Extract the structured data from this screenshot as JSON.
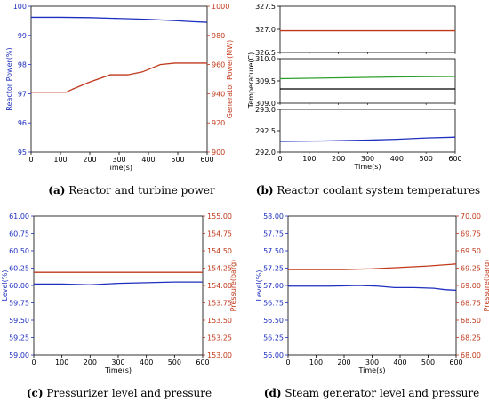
{
  "chart_data": [
    {
      "id": "a",
      "type": "line",
      "caption": {
        "letter": "(a)",
        "text": " Reactor and turbine power"
      },
      "xlabel": "Time(s)",
      "xlim": [
        0,
        600
      ],
      "xticks": [
        0,
        100,
        200,
        300,
        400,
        500,
        600
      ],
      "left": {
        "label": "Reactor Power(%)",
        "color": "#1f2fbf",
        "lim": [
          95,
          100
        ],
        "ticks": [
          95,
          96,
          97,
          98,
          99,
          100
        ]
      },
      "right": {
        "label": "Generator Power(MW)",
        "color": "#c0391b",
        "lim": [
          900,
          1000
        ],
        "ticks": [
          900,
          920,
          940,
          960,
          980,
          1000
        ]
      },
      "series": [
        {
          "axis": "left",
          "color": "#1f2fbf",
          "x": [
            0,
            100,
            200,
            300,
            400,
            500,
            550,
            600
          ],
          "y": [
            99.62,
            99.62,
            99.61,
            99.58,
            99.55,
            99.5,
            99.47,
            99.45
          ]
        },
        {
          "axis": "right",
          "color": "#c0391b",
          "x": [
            0,
            120,
            140,
            200,
            270,
            330,
            380,
            440,
            490,
            600
          ],
          "y": [
            941,
            941,
            943,
            948,
            953,
            953,
            955,
            960,
            961,
            961
          ]
        }
      ]
    },
    {
      "id": "b",
      "type": "line",
      "caption": {
        "letter": "(b)",
        "text": " Reactor coolant system temperatures"
      },
      "xlabel": "Time(s)",
      "ylabel": "Temperature(C)",
      "xlim": [
        0,
        600
      ],
      "xticks": [
        0,
        100,
        200,
        300,
        400,
        500,
        600
      ],
      "subpanels": [
        {
          "ylim": [
            326.5,
            327.5
          ],
          "yticks": [
            "326.5",
            "327.0",
            "327.5"
          ],
          "series": [
            {
              "color": "#c0391b",
              "x": [
                0,
                300,
                600
              ],
              "y": [
                326.97,
                326.97,
                326.97
              ]
            }
          ]
        },
        {
          "ylim": [
            309.0,
            310.0
          ],
          "yticks": [
            "309.0",
            "309.5",
            "310.0"
          ],
          "series": [
            {
              "color": "#2ca02c",
              "x": [
                0,
                200,
                400,
                600
              ],
              "y": [
                309.55,
                309.57,
                309.59,
                309.6
              ]
            },
            {
              "color": "#000000",
              "x": [
                0,
                300,
                600
              ],
              "y": [
                309.32,
                309.32,
                309.32
              ]
            }
          ]
        },
        {
          "ylim": [
            292.0,
            293.0
          ],
          "yticks": [
            "292.0",
            "292.5",
            "293.0"
          ],
          "series": [
            {
              "color": "#1f2fbf",
              "x": [
                0,
                150,
                300,
                400,
                500,
                600
              ],
              "y": [
                292.25,
                292.26,
                292.28,
                292.3,
                292.33,
                292.35
              ]
            }
          ]
        }
      ]
    },
    {
      "id": "c",
      "type": "line",
      "caption": {
        "letter": "(c)",
        "text": " Pressurizer level and pressure"
      },
      "xlabel": "Time(s)",
      "xlim": [
        0,
        600
      ],
      "xticks": [
        0,
        100,
        200,
        300,
        400,
        500,
        600
      ],
      "left": {
        "label": "Level(%)",
        "color": "#1f2fbf",
        "lim": [
          59,
          61
        ],
        "ticks": [
          "59.00",
          "59.25",
          "59.50",
          "59.75",
          "60.00",
          "60.25",
          "60.50",
          "60.75",
          "61.00"
        ]
      },
      "right": {
        "label": "Pressure(barg)",
        "color": "#c0391b",
        "lim": [
          153,
          155
        ],
        "ticks": [
          "153.00",
          "153.25",
          "153.50",
          "153.75",
          "154.00",
          "154.25",
          "154.50",
          "154.75",
          "155.00"
        ]
      },
      "series": [
        {
          "axis": "left",
          "color": "#1f2fbf",
          "x": [
            0,
            100,
            200,
            300,
            400,
            500,
            600
          ],
          "y": [
            60.02,
            60.02,
            60.01,
            60.03,
            60.04,
            60.05,
            60.05
          ]
        },
        {
          "axis": "right",
          "color": "#c0391b",
          "x": [
            0,
            100,
            200,
            300,
            400,
            500,
            600
          ],
          "y": [
            154.19,
            154.19,
            154.19,
            154.19,
            154.19,
            154.19,
            154.19
          ]
        }
      ]
    },
    {
      "id": "d",
      "type": "line",
      "caption": {
        "letter": "(d)",
        "text": " Steam generator level and pressure"
      },
      "xlabel": "Time(s)",
      "xlim": [
        0,
        600
      ],
      "xticks": [
        0,
        100,
        200,
        300,
        400,
        500,
        600
      ],
      "left": {
        "label": "Level(%)",
        "color": "#1f2fbf",
        "lim": [
          56,
          58
        ],
        "ticks": [
          "56.00",
          "56.25",
          "56.50",
          "56.75",
          "57.00",
          "57.25",
          "57.50",
          "57.75",
          "58.00"
        ]
      },
      "right": {
        "label": "Pressure(barg)",
        "color": "#c0391b",
        "lim": [
          68,
          70
        ],
        "ticks": [
          "68.00",
          "68.25",
          "68.50",
          "68.75",
          "69.00",
          "69.25",
          "69.50",
          "69.75",
          "70.00"
        ]
      },
      "series": [
        {
          "axis": "left",
          "color": "#1f2fbf",
          "x": [
            0,
            150,
            250,
            320,
            380,
            450,
            520,
            560,
            600
          ],
          "y": [
            56.99,
            56.99,
            57.0,
            56.99,
            56.97,
            56.97,
            56.96,
            56.94,
            56.93
          ]
        },
        {
          "axis": "right",
          "color": "#c0391b",
          "x": [
            0,
            200,
            300,
            350,
            400,
            500,
            600
          ],
          "y": [
            69.23,
            69.23,
            69.24,
            69.25,
            69.26,
            69.28,
            69.31
          ]
        }
      ]
    }
  ]
}
